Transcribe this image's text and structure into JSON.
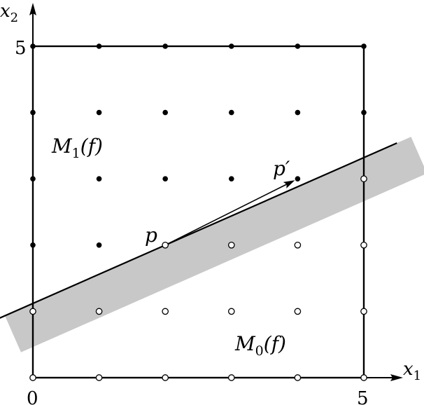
{
  "diagram": {
    "axes": {
      "x_label": "x",
      "x_subscript": "1",
      "y_label": "x",
      "y_subscript": "2",
      "tick_zero": "0",
      "tick_x_max": "5",
      "tick_y_max": "5"
    },
    "grid": {
      "min": 0,
      "max": 5
    },
    "regions": {
      "m1": {
        "main": "M",
        "sub": "1",
        "arg": "(f)"
      },
      "m0": {
        "main": "M",
        "sub": "0",
        "arg": "(f)"
      }
    },
    "points": {
      "p": {
        "label": "p",
        "x": 2,
        "y": 2
      },
      "p_prime": {
        "label": "p′",
        "x": 4,
        "y": 3
      }
    },
    "line": {
      "slope": 0.44,
      "y_at_x2": 2
    },
    "colors": {
      "band": "#c8c8c8",
      "ink": "#000000",
      "open_fill": "#ffffff"
    }
  }
}
